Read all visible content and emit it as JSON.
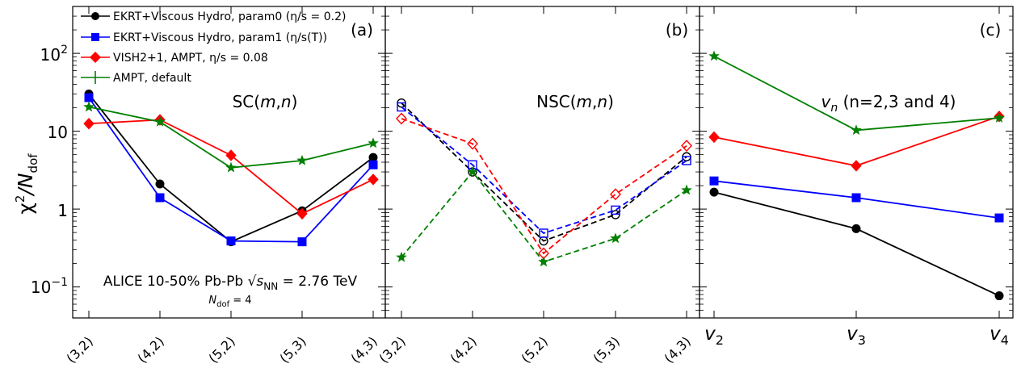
{
  "figure": {
    "ylabel_main": "χ",
    "ylabel_sup": "2",
    "ylabel_slash": "/N",
    "ylabel_sub": "dof"
  },
  "legend": [
    {
      "label": "EKRT+Viscous Hydro, param0 (η/s = 0.2)",
      "color": "#000000",
      "marker": "circle"
    },
    {
      "label": "EKRT+Viscous Hydro, param1 (η/s(T))",
      "color": "#0000ff",
      "marker": "square"
    },
    {
      "label": "VISH2+1, AMPT, η/s = 0.08",
      "color": "#ff0000",
      "marker": "diamond"
    },
    {
      "label": "AMPT, default",
      "color": "#008000",
      "marker": "star"
    }
  ],
  "annotation": {
    "line1": "ALICE 10-50% Pb-Pb √sNN = 2.76 TeV",
    "line2": "Ndof = 4"
  },
  "y_ticks": [
    "10⁻¹",
    "1",
    "10",
    "10²"
  ],
  "chart_data": [
    {
      "type": "line",
      "panel": "(a)",
      "title": "SC(m,n)",
      "categories": [
        "(3,2)",
        "(4,2)",
        "(5,2)",
        "(5,3)",
        "(4,3)"
      ],
      "yscale": "log",
      "ylim": [
        0.04,
        400
      ],
      "series": [
        {
          "name": "EKRT+Viscous Hydro, param0 (η/s = 0.2)",
          "color": "#000000",
          "marker": "circle",
          "filled": true,
          "dash": "solid",
          "values": [
            30,
            2.1,
            0.38,
            0.95,
            4.6
          ]
        },
        {
          "name": "EKRT+Viscous Hydro, param1 (η/s(T))",
          "color": "#0000ff",
          "marker": "square",
          "filled": true,
          "dash": "solid",
          "values": [
            27,
            1.4,
            0.39,
            0.38,
            3.7
          ]
        },
        {
          "name": "VISH2+1, AMPT, η/s = 0.08",
          "color": "#ff0000",
          "marker": "diamond",
          "filled": true,
          "dash": "solid",
          "values": [
            12.5,
            14,
            4.9,
            0.87,
            2.4
          ]
        },
        {
          "name": "AMPT, default",
          "color": "#008000",
          "marker": "star",
          "filled": true,
          "dash": "solid",
          "values": [
            20.5,
            13.2,
            3.4,
            4.2,
            7.0
          ]
        }
      ]
    },
    {
      "type": "line",
      "panel": "(b)",
      "title": "NSC(m,n)",
      "categories": [
        "(3,2)",
        "(4,2)",
        "(5,2)",
        "(5,3)",
        "(4,3)"
      ],
      "yscale": "log",
      "ylim": [
        0.04,
        400
      ],
      "series": [
        {
          "name": "EKRT+Viscous Hydro, param0 (η/s = 0.2)",
          "color": "#000000",
          "marker": "circle",
          "filled": false,
          "dash": "dashed",
          "values": [
            23,
            3.0,
            0.39,
            0.85,
            4.7
          ]
        },
        {
          "name": "EKRT+Viscous Hydro, param1 (η/s(T))",
          "color": "#0000ff",
          "marker": "square",
          "filled": false,
          "dash": "dashed",
          "values": [
            20.5,
            3.7,
            0.49,
            0.97,
            4.2
          ]
        },
        {
          "name": "VISH2+1, AMPT, η/s = 0.08",
          "color": "#ff0000",
          "marker": "diamond",
          "filled": false,
          "dash": "dashed",
          "values": [
            14.5,
            6.9,
            0.27,
            1.55,
            6.5
          ]
        },
        {
          "name": "AMPT, default",
          "color": "#008000",
          "marker": "star",
          "filled": true,
          "dash": "dashed",
          "values": [
            0.24,
            3.0,
            0.21,
            0.42,
            1.75
          ]
        }
      ]
    },
    {
      "type": "line",
      "panel": "(c)",
      "title": "vn (n=2,3 and 4)",
      "categories": [
        "v2",
        "v3",
        "v4"
      ],
      "yscale": "log",
      "ylim": [
        0.04,
        400
      ],
      "series": [
        {
          "name": "EKRT+Viscous Hydro, param0 (η/s = 0.2)",
          "color": "#000000",
          "marker": "circle",
          "filled": true,
          "dash": "solid",
          "values": [
            1.65,
            0.56,
            0.077
          ]
        },
        {
          "name": "EKRT+Viscous Hydro, param1 (η/s(T))",
          "color": "#0000ff",
          "marker": "square",
          "filled": true,
          "dash": "solid",
          "values": [
            2.3,
            1.4,
            0.77
          ]
        },
        {
          "name": "VISH2+1, AMPT, η/s = 0.08",
          "color": "#ff0000",
          "marker": "diamond",
          "filled": true,
          "dash": "solid",
          "values": [
            8.4,
            3.6,
            15.5
          ]
        },
        {
          "name": "AMPT, default",
          "color": "#008000",
          "marker": "star",
          "filled": true,
          "dash": "solid",
          "values": [
            92,
            10.3,
            14.8
          ]
        }
      ]
    }
  ]
}
